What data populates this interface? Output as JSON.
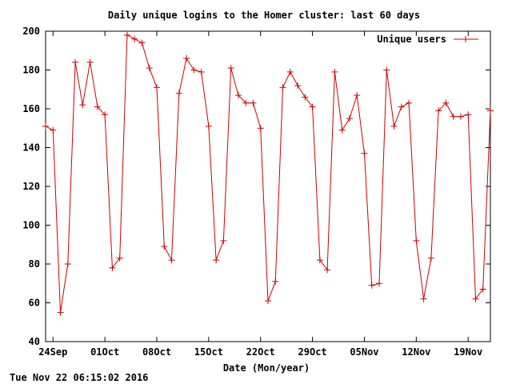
{
  "colors": {
    "series": "#cc0000",
    "axis": "#000000",
    "background": "#ffffff"
  },
  "timestamp": "Tue Nov 22 06:15:02 2016",
  "chart_data": {
    "type": "line",
    "title": "Daily unique logins to the Homer cluster: last 60 days",
    "xlabel": "Date (Mon/year)",
    "ylabel": "",
    "ylim": [
      40,
      200
    ],
    "yticks": [
      40,
      60,
      80,
      100,
      120,
      140,
      160,
      180,
      200
    ],
    "xlim": [
      "2016-09-23",
      "2016-11-22"
    ],
    "xticks": [
      {
        "date": "2016-09-24",
        "label": "24Sep"
      },
      {
        "date": "2016-10-01",
        "label": "01Oct"
      },
      {
        "date": "2016-10-08",
        "label": "08Oct"
      },
      {
        "date": "2016-10-15",
        "label": "15Oct"
      },
      {
        "date": "2016-10-22",
        "label": "22Oct"
      },
      {
        "date": "2016-10-29",
        "label": "29Oct"
      },
      {
        "date": "2016-11-05",
        "label": "05Nov"
      },
      {
        "date": "2016-11-12",
        "label": "12Nov"
      },
      {
        "date": "2016-11-19",
        "label": "19Nov"
      }
    ],
    "legend_position": "top-right",
    "grid": false,
    "series": [
      {
        "name": "Unique users",
        "x": [
          "2016-09-23",
          "2016-09-24",
          "2016-09-25",
          "2016-09-26",
          "2016-09-27",
          "2016-09-28",
          "2016-09-29",
          "2016-09-30",
          "2016-10-01",
          "2016-10-02",
          "2016-10-03",
          "2016-10-04",
          "2016-10-05",
          "2016-10-06",
          "2016-10-07",
          "2016-10-08",
          "2016-10-09",
          "2016-10-10",
          "2016-10-11",
          "2016-10-12",
          "2016-10-13",
          "2016-10-14",
          "2016-10-15",
          "2016-10-16",
          "2016-10-17",
          "2016-10-18",
          "2016-10-19",
          "2016-10-20",
          "2016-10-21",
          "2016-10-22",
          "2016-10-23",
          "2016-10-24",
          "2016-10-25",
          "2016-10-26",
          "2016-10-27",
          "2016-10-28",
          "2016-10-29",
          "2016-10-30",
          "2016-10-31",
          "2016-11-01",
          "2016-11-02",
          "2016-11-03",
          "2016-11-04",
          "2016-11-05",
          "2016-11-06",
          "2016-11-07",
          "2016-11-08",
          "2016-11-09",
          "2016-11-10",
          "2016-11-11",
          "2016-11-12",
          "2016-11-13",
          "2016-11-14",
          "2016-11-15",
          "2016-11-16",
          "2016-11-17",
          "2016-11-18",
          "2016-11-19",
          "2016-11-20",
          "2016-11-21",
          "2016-11-22"
        ],
        "values": [
          151,
          149,
          55,
          80,
          184,
          162,
          184,
          161,
          157,
          78,
          83,
          198,
          196,
          194,
          181,
          171,
          89,
          82,
          168,
          186,
          180,
          179,
          151,
          82,
          92,
          181,
          167,
          163,
          163,
          150,
          61,
          71,
          171,
          179,
          172,
          166,
          161,
          82,
          77,
          179,
          149,
          155,
          167,
          137,
          69,
          70,
          180,
          151,
          161,
          163,
          92,
          62,
          83,
          159,
          163,
          156,
          156,
          157,
          62,
          67,
          159
        ]
      }
    ]
  }
}
